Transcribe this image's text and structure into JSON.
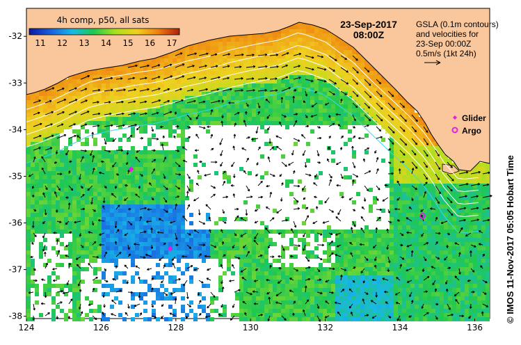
{
  "header": {
    "colorbar_title": "4h comp, p50, all sats",
    "date": "23-Sep-2017",
    "time": "08:00Z"
  },
  "colorbar": {
    "ticks": [
      "11",
      "12",
      "13",
      "14",
      "15",
      "16",
      "17"
    ],
    "colors": [
      "#0a1aa0",
      "#1a5fe0",
      "#18b8e8",
      "#20c850",
      "#a8e020",
      "#f0d020",
      "#f08010",
      "#b02010"
    ]
  },
  "info_box": {
    "line1": "GSLA (0.1m contours)",
    "line2": "and velocities for",
    "line3": "23-Sep 00:00Z",
    "line4": "0.5m/s (1kt 24h)"
  },
  "legend": {
    "glider": "Glider",
    "argo": "Argo",
    "marker_color": "#e020e0"
  },
  "axes": {
    "x_ticks": [
      "124",
      "126",
      "128",
      "130",
      "132",
      "134",
      "136"
    ],
    "y_ticks": [
      "-32",
      "-33",
      "-34",
      "-35",
      "-36",
      "-37",
      "-38"
    ]
  },
  "credit": "© IMOS 11-Nov-2017 05:05 Hobart Time",
  "land_color": "#f9c79b",
  "markers": {
    "gliders": [
      {
        "lon": 126.8,
        "lat": -34.85
      },
      {
        "lon": 127.85,
        "lat": -36.55
      }
    ],
    "argo": [
      {
        "lon": 134.6,
        "lat": -35.85
      }
    ]
  }
}
